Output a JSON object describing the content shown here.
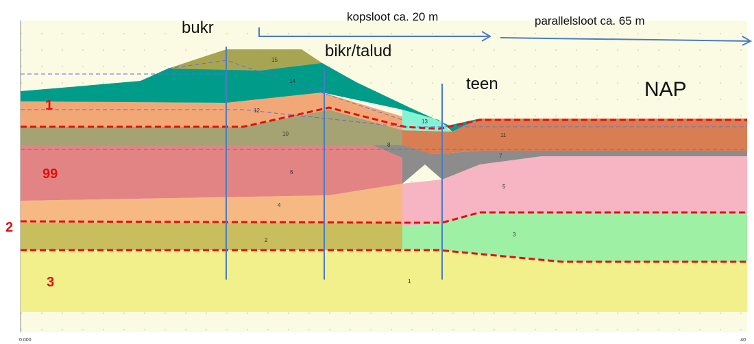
{
  "annotations": {
    "crest": "bukr",
    "inner_crest": "bikr/talud",
    "toe": "teen",
    "reference": "NAP",
    "ditch_1": "kopsloot ca. 20 m",
    "ditch_2": "parallelsloot ca. 65 m"
  },
  "boundaries": [
    "1",
    "99",
    "2",
    "3"
  ],
  "layers": [
    "1",
    "2",
    "3",
    "4",
    "5",
    "6",
    "7",
    "8",
    "10",
    "11",
    "12",
    "13",
    "14",
    "15"
  ],
  "axis": {
    "start": "0.000",
    "end": "40"
  }
}
